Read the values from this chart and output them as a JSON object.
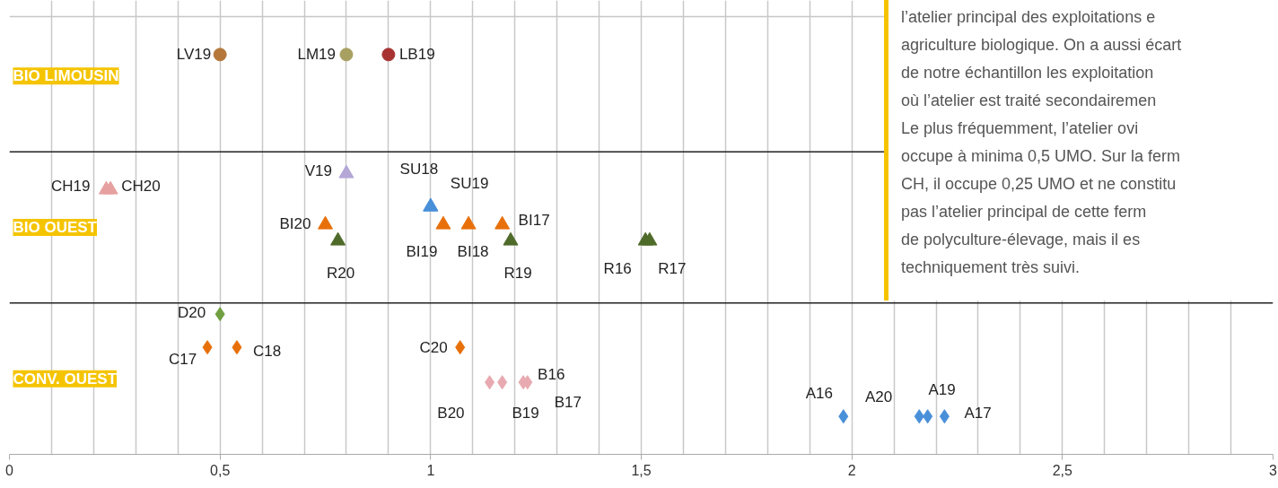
{
  "chart_data": {
    "type": "scatter",
    "orientation": "horizontal",
    "grid": "x",
    "categories": [
      "BIO LIMOUSIN",
      "BIO OUEST",
      "CONV. OUEST"
    ],
    "xlim": [
      0,
      3
    ],
    "xticks": [
      0,
      {
        "value": 0.1,
        "label": null
      },
      {
        "value": 0.2,
        "label": null
      },
      {
        "value": 0.3,
        "label": null
      },
      {
        "value": 0.4,
        "label": null
      },
      {
        "value": 0.5,
        "label": "0,5"
      },
      {
        "value": 0.6,
        "label": null
      },
      {
        "value": 0.7,
        "label": null
      },
      {
        "value": 0.8,
        "label": null
      },
      {
        "value": 0.9,
        "label": null
      },
      1,
      {
        "value": 1.1,
        "label": null
      },
      {
        "value": 1.2,
        "label": null
      },
      {
        "value": 1.3,
        "label": null
      },
      {
        "value": 1.4,
        "label": null
      },
      {
        "value": 1.5,
        "label": "1,5"
      },
      {
        "value": 1.6,
        "label": null
      },
      {
        "value": 1.7,
        "label": null
      },
      {
        "value": 1.8,
        "label": null
      },
      {
        "value": 1.9,
        "label": null
      },
      2,
      {
        "value": 2.1,
        "label": null
      },
      {
        "value": 2.2,
        "label": null
      },
      {
        "value": 2.3,
        "label": null
      },
      {
        "value": 2.4,
        "label": null
      },
      {
        "value": 2.5,
        "label": "2,5"
      },
      {
        "value": 2.6,
        "label": null
      },
      {
        "value": 2.7,
        "label": null
      },
      {
        "value": 2.8,
        "label": null
      },
      {
        "value": 2.9,
        "label": null
      },
      3
    ],
    "series": [
      {
        "name": "LV19",
        "color": "#b5773a",
        "marker": "circle",
        "values": [
          0.5,
          null,
          null
        ]
      },
      {
        "name": "LM19",
        "color": "#a8a060",
        "marker": "circle",
        "values": [
          0.8,
          null,
          null
        ]
      },
      {
        "name": "LB19",
        "color": "#a83232",
        "marker": "circle",
        "values": [
          0.9,
          null,
          null
        ]
      },
      {
        "name": "V19",
        "color": "#b4a7d6",
        "marker": "triangle",
        "values": [
          null,
          0.8,
          null
        ]
      },
      {
        "name": "CH19",
        "color": "#e6a0a0",
        "marker": "triangle",
        "values": [
          null,
          0.23,
          null
        ]
      },
      {
        "name": "CH20",
        "color": "#e6a0a0",
        "marker": "triangle",
        "values": [
          null,
          0.24,
          null
        ]
      },
      {
        "name": "SU18",
        "color": "#4a90d9",
        "marker": "triangle",
        "values": [
          null,
          1.0,
          null
        ]
      },
      {
        "name": "SU19",
        "color": "#4a90d9",
        "marker": "triangle",
        "values": [
          null,
          1.0,
          null
        ]
      },
      {
        "name": "BI20",
        "color": "#e8700a",
        "marker": "triangle",
        "values": [
          null,
          0.75,
          null
        ]
      },
      {
        "name": "BI19",
        "color": "#e8700a",
        "marker": "triangle",
        "values": [
          null,
          1.03,
          null
        ]
      },
      {
        "name": "BI18",
        "color": "#e8700a",
        "marker": "triangle",
        "values": [
          null,
          1.09,
          null
        ]
      },
      {
        "name": "BI17",
        "color": "#e8700a",
        "marker": "triangle",
        "values": [
          null,
          1.17,
          null
        ]
      },
      {
        "name": "R20",
        "color": "#4f6b2a",
        "marker": "triangle",
        "values": [
          null,
          0.78,
          null
        ]
      },
      {
        "name": "R19",
        "color": "#4f6b2a",
        "marker": "triangle",
        "values": [
          null,
          1.19,
          null
        ]
      },
      {
        "name": "R16",
        "color": "#4f6b2a",
        "marker": "triangle",
        "values": [
          null,
          1.51,
          null
        ]
      },
      {
        "name": "R17",
        "color": "#4f6b2a",
        "marker": "triangle",
        "values": [
          null,
          1.52,
          null
        ]
      },
      {
        "name": "D20",
        "color": "#70a040",
        "marker": "diamond",
        "values": [
          null,
          null,
          0.5
        ]
      },
      {
        "name": "C17",
        "color": "#e8700a",
        "marker": "diamond",
        "values": [
          null,
          null,
          0.47
        ]
      },
      {
        "name": "C18",
        "color": "#e8700a",
        "marker": "diamond",
        "values": [
          null,
          null,
          0.54
        ]
      },
      {
        "name": "C20",
        "color": "#e8700a",
        "marker": "diamond",
        "values": [
          null,
          null,
          1.07
        ]
      },
      {
        "name": "B20",
        "color": "#e8aab0",
        "marker": "diamond",
        "values": [
          null,
          null,
          1.14
        ]
      },
      {
        "name": "B19",
        "color": "#e8aab0",
        "marker": "diamond",
        "values": [
          null,
          null,
          1.17
        ]
      },
      {
        "name": "B16",
        "color": "#e8aab0",
        "marker": "diamond",
        "values": [
          null,
          null,
          1.22
        ]
      },
      {
        "name": "B17",
        "color": "#e8aab0",
        "marker": "diamond",
        "values": [
          null,
          null,
          1.23
        ]
      },
      {
        "name": "A16",
        "color": "#4a90d9",
        "marker": "diamond",
        "values": [
          null,
          null,
          1.98
        ]
      },
      {
        "name": "A20",
        "color": "#4a90d9",
        "marker": "diamond",
        "values": [
          null,
          null,
          2.16
        ]
      },
      {
        "name": "A19",
        "color": "#4a90d9",
        "marker": "diamond",
        "values": [
          null,
          null,
          2.18
        ]
      },
      {
        "name": "A17",
        "color": "#4a90d9",
        "marker": "diamond",
        "values": [
          null,
          null,
          2.22
        ]
      }
    ],
    "annotations": [
      "l’atelier principal des exploitations e\nagriculture biologique. On a aussi écart\nde notre échantillon les exploitation\noù l’atelier est traité secondairemen\nLe plus fréquemment, l’atelier ovi\noccupe à minima 0,5 UMO. Sur la ferm\nCH, il occupe 0,25 UMO et ne constitu\npas l’atelier principal de cette ferm\nde polyculture-élevage, mais il es\ntechniquement très suivi."
    ]
  }
}
